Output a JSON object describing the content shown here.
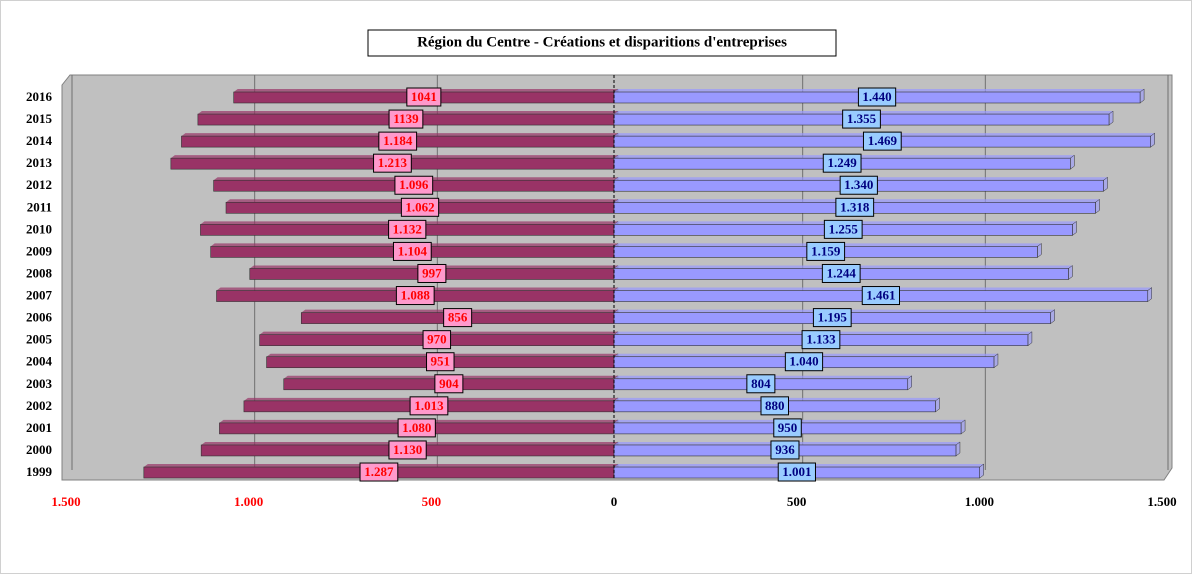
{
  "chart_data": {
    "type": "butterfly-bar",
    "title": "Région du Centre - Créations et disparitions d'entreprises",
    "categories": [
      "2016",
      "2015",
      "2014",
      "2013",
      "2012",
      "2011",
      "2010",
      "2009",
      "2008",
      "2007",
      "2006",
      "2005",
      "2004",
      "2003",
      "2002",
      "2001",
      "2000",
      "1999"
    ],
    "series": [
      {
        "side": "left",
        "color": "#993366",
        "label_fill": "#ff99cc",
        "label_color": "#ff0000",
        "values": [
          1041,
          1139,
          1184,
          1213,
          1096,
          1062,
          1132,
          1104,
          997,
          1088,
          856,
          970,
          951,
          904,
          1013,
          1080,
          1130,
          1287
        ],
        "value_labels": [
          "1041",
          "1139",
          "1.184",
          "1.213",
          "1.096",
          "1.062",
          "1.132",
          "1.104",
          "997",
          "1.088",
          "856",
          "970",
          "951",
          "904",
          "1.013",
          "1.080",
          "1.130",
          "1.287"
        ]
      },
      {
        "side": "right",
        "color": "#9999ff",
        "label_fill": "#99ccff",
        "label_color": "#000080",
        "values": [
          1440,
          1355,
          1469,
          1249,
          1340,
          1318,
          1255,
          1159,
          1244,
          1461,
          1195,
          1133,
          1040,
          804,
          880,
          950,
          936,
          1001
        ],
        "value_labels": [
          "1.440",
          "1.355",
          "1.469",
          "1.249",
          "1.340",
          "1.318",
          "1.255",
          "1.159",
          "1.244",
          "1.461",
          "1.195",
          "1.133",
          "1.040",
          "804",
          "880",
          "950",
          "936",
          "1.001"
        ]
      }
    ],
    "xlim": [
      -1500,
      1500
    ],
    "xticks": [
      {
        "value": -1500,
        "label": "1.500"
      },
      {
        "value": -1000,
        "label": "1.000"
      },
      {
        "value": -500,
        "label": "500"
      },
      0,
      500,
      {
        "value": 1000,
        "label": "1.000"
      },
      {
        "value": 1500,
        "label": "1.500"
      }
    ],
    "grid": true
  }
}
